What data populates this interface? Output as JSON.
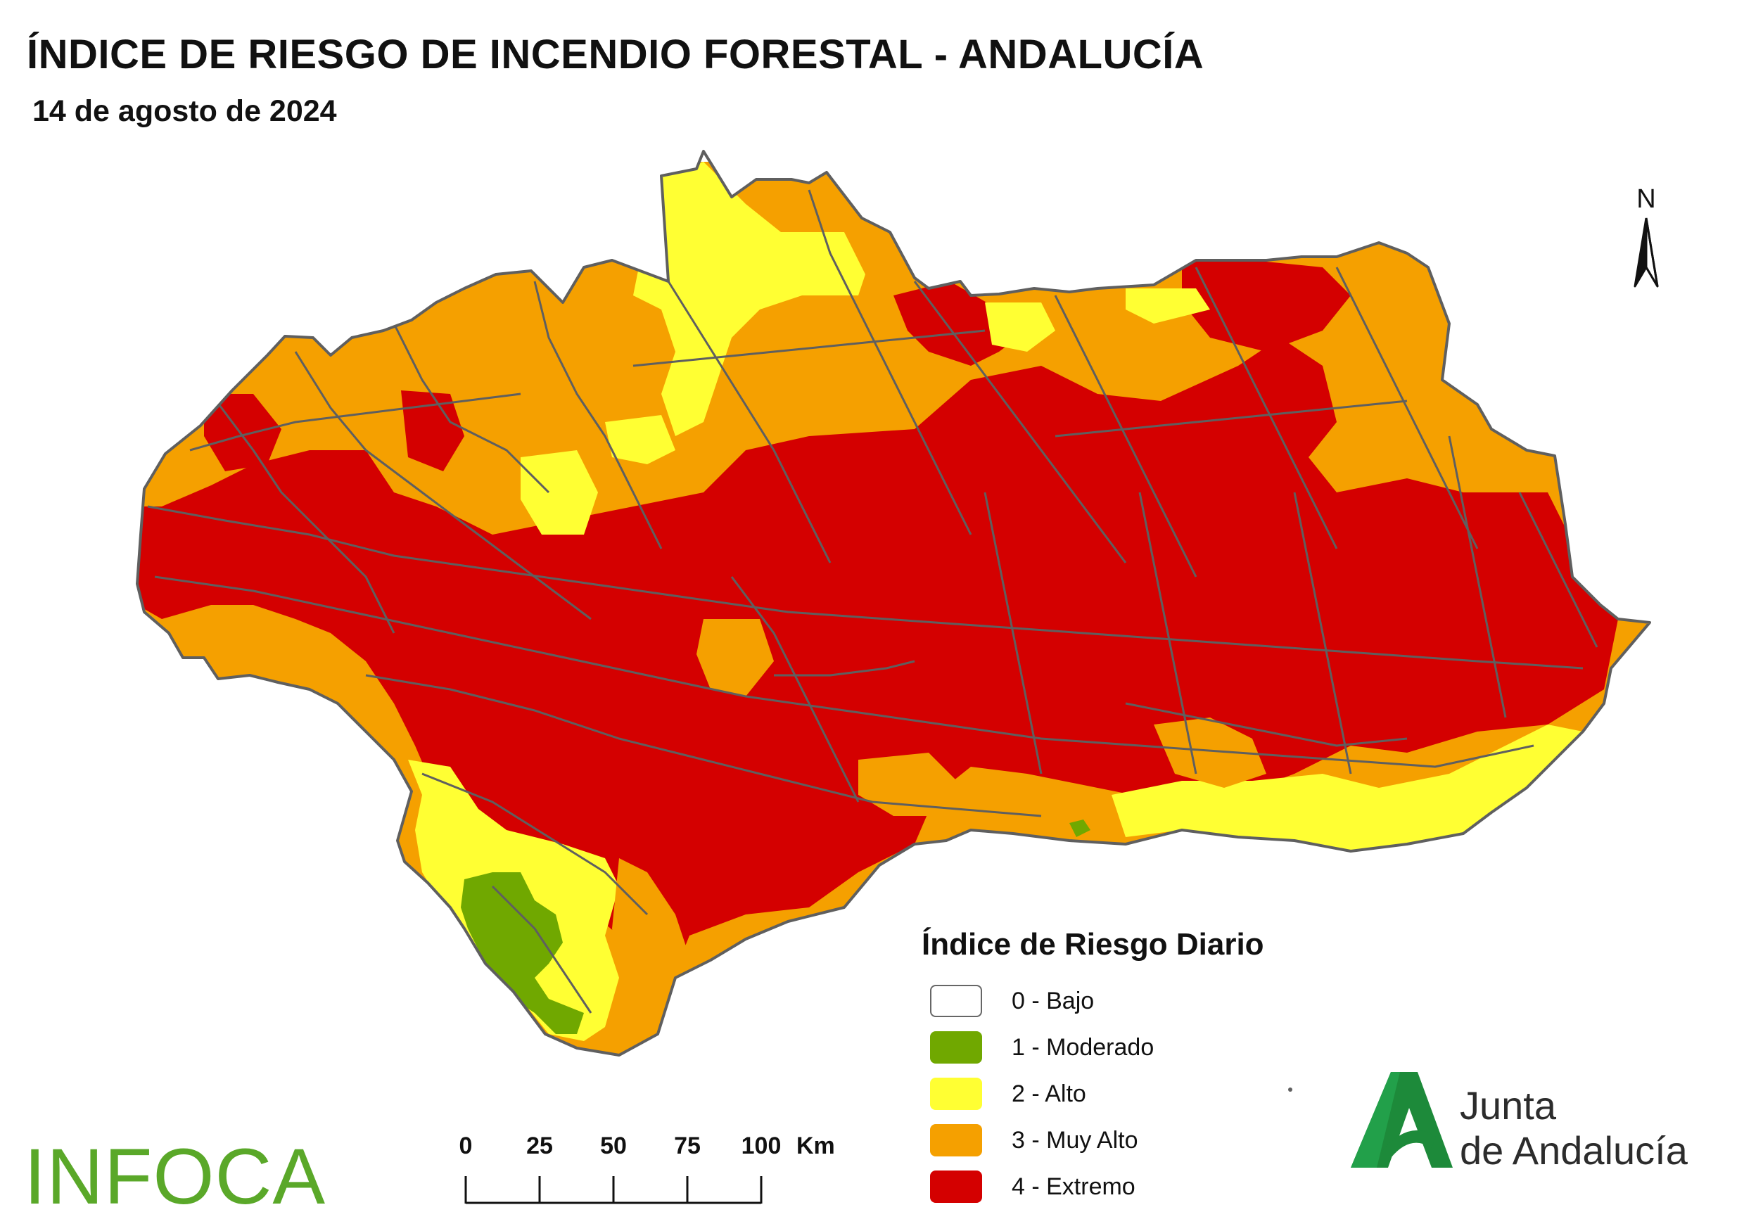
{
  "header": {
    "title": "ÍNDICE DE RIESGO DE INCENDIO FORESTAL - ANDALUCÍA",
    "date": "14 de agosto de 2024"
  },
  "north_arrow": {
    "label": "N"
  },
  "legend": {
    "title": "Índice de Riesgo Diario",
    "items": [
      {
        "label": "0 - Bajo",
        "color": "#ffffff"
      },
      {
        "label": "1 - Moderado",
        "color": "#70a800"
      },
      {
        "label": "2 - Alto",
        "color": "#ffff33"
      },
      {
        "label": "3 - Muy Alto",
        "color": "#f5a000"
      },
      {
        "label": "4 - Extremo",
        "color": "#d40000"
      }
    ]
  },
  "scale_bar": {
    "ticks": [
      "0",
      "25",
      "50",
      "75",
      "100"
    ],
    "unit": "Km"
  },
  "logos": {
    "infoca": "INFOCA",
    "junta_line1": "Junta",
    "junta_line2": "de Andalucía"
  },
  "map_colors": {
    "bajo": "#ffffff",
    "moderado": "#70a800",
    "alto": "#ffff33",
    "muy_alto": "#f5a000",
    "extremo": "#d40000",
    "boundaries": "#5f5f5f"
  }
}
